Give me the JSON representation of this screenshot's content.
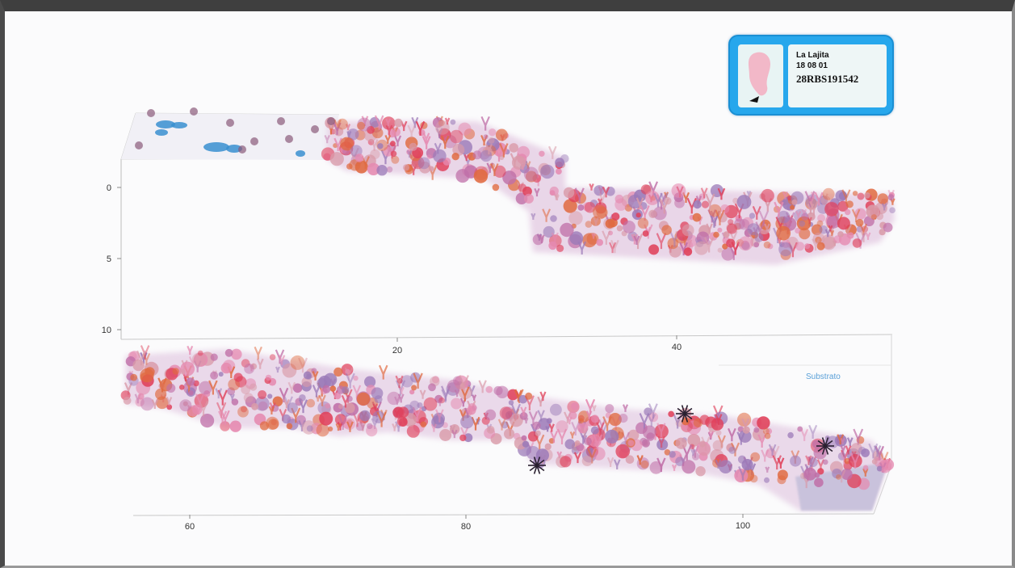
{
  "site": {
    "name": "La Lajita",
    "date": "18 08 01",
    "code": "28RBS191542"
  },
  "upper_axis": {
    "y_ticks": [
      "0",
      "5",
      "10"
    ],
    "x_ticks": [
      "20",
      "40"
    ]
  },
  "lower_axis": {
    "x_ticks": [
      "60",
      "80",
      "100"
    ]
  },
  "legend": {
    "label": "Substrato"
  },
  "icons": {
    "map": "island-map-icon"
  },
  "colors": {
    "card": "#27a7ec",
    "coral_red": "#e0405a",
    "coral_pink": "#e58ab0",
    "sponge_purple": "#9b7ab8",
    "sponge_orange": "#e06a40",
    "algae_blue": "#3a8fd0"
  }
}
